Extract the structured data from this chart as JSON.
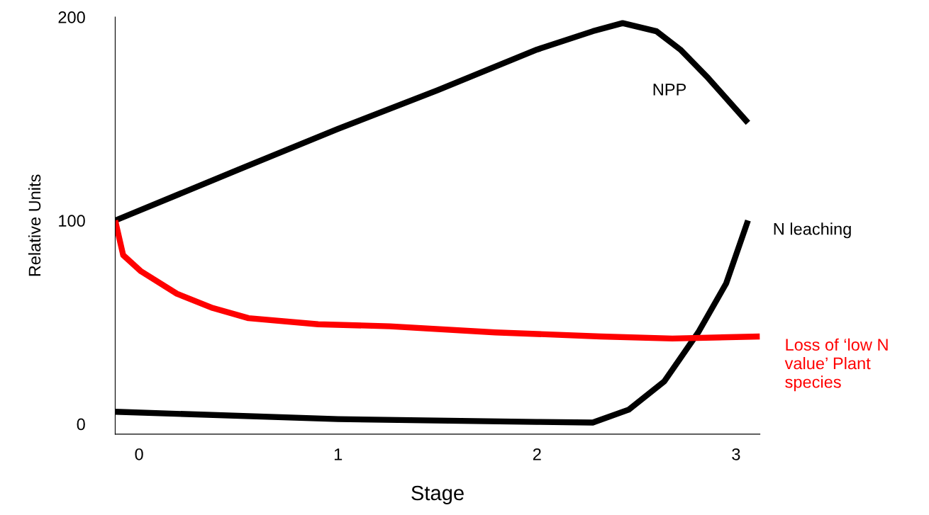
{
  "chart_data": {
    "type": "line",
    "xlabel": "Stage",
    "ylabel": "Relative Units",
    "xlim": [
      -0.12,
      3.12
    ],
    "xticks": [
      0,
      1,
      2,
      3
    ],
    "ylim": [
      -5,
      200
    ],
    "yticks": [
      0,
      100,
      200
    ],
    "grid": false,
    "legend": false,
    "marker": "none",
    "line_style": "solid",
    "series": [
      {
        "name": "NPP",
        "color": "#000000",
        "x": [
          -0.12,
          0.5,
          1.0,
          1.5,
          2.0,
          2.28,
          2.43,
          2.6,
          2.72,
          2.86,
          3.06
        ],
        "values": [
          100,
          125,
          145,
          164,
          184,
          193,
          197,
          193,
          184,
          170,
          148
        ]
      },
      {
        "name": "N leaching",
        "color": "#000000",
        "x": [
          -0.12,
          1.0,
          2.0,
          2.28,
          2.46,
          2.64,
          2.81,
          2.95,
          3.06
        ],
        "values": [
          6,
          2.4,
          1,
          0.7,
          7,
          21,
          45,
          69,
          100
        ]
      },
      {
        "name": "Loss of ‘low N\nvalue’ Plant\nspecies",
        "color": "#ff0000",
        "x": [
          -0.12,
          -0.08,
          0.01,
          0.19,
          0.37,
          0.55,
          0.9,
          1.26,
          1.79,
          2.32,
          2.68,
          3.12
        ],
        "values": [
          100,
          83,
          75,
          64,
          57,
          52,
          49,
          48,
          45,
          43,
          42,
          43
        ]
      }
    ]
  }
}
